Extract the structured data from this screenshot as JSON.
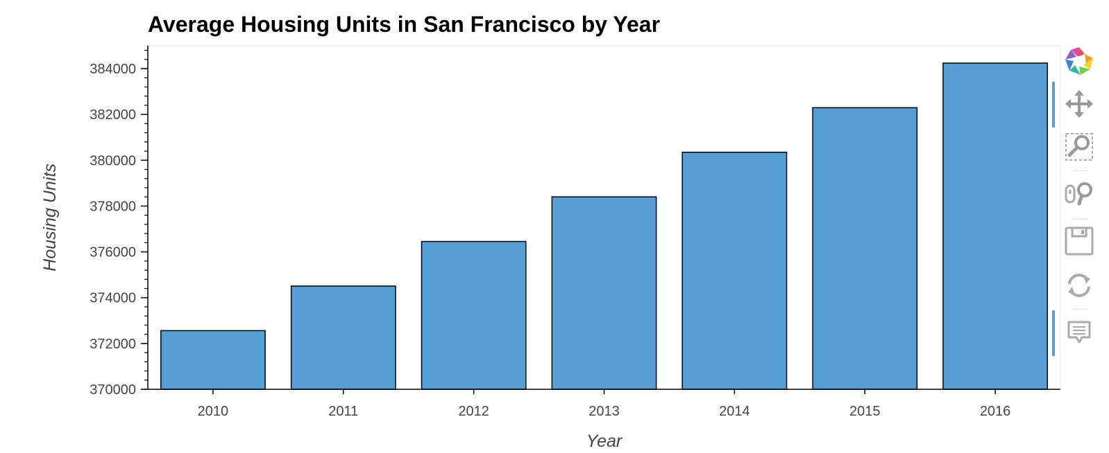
{
  "chart_data": {
    "type": "bar",
    "title": "Average Housing Units in San Francisco by Year",
    "xlabel": "Year",
    "ylabel": "Housing Units",
    "categories": [
      "2010",
      "2011",
      "2012",
      "2013",
      "2014",
      "2015",
      "2016"
    ],
    "values": [
      372560,
      374507,
      376454,
      378401,
      380348,
      382295,
      384242
    ],
    "ylim": [
      370000,
      385000
    ],
    "yticks": [
      370000,
      372000,
      374000,
      376000,
      378000,
      380000,
      382000,
      384000
    ],
    "grid": false,
    "bar_color": "#559fd4",
    "bar_edge_color": "#000000"
  },
  "toolbar": {
    "tools": [
      {
        "icon": "bokeh-logo-icon"
      },
      {
        "icon": "pan-icon"
      },
      {
        "icon": "box-zoom-icon"
      },
      {
        "icon": "wheel-zoom-icon"
      },
      {
        "icon": "save-icon"
      },
      {
        "icon": "reset-icon"
      },
      {
        "icon": "hover-icon"
      }
    ]
  }
}
